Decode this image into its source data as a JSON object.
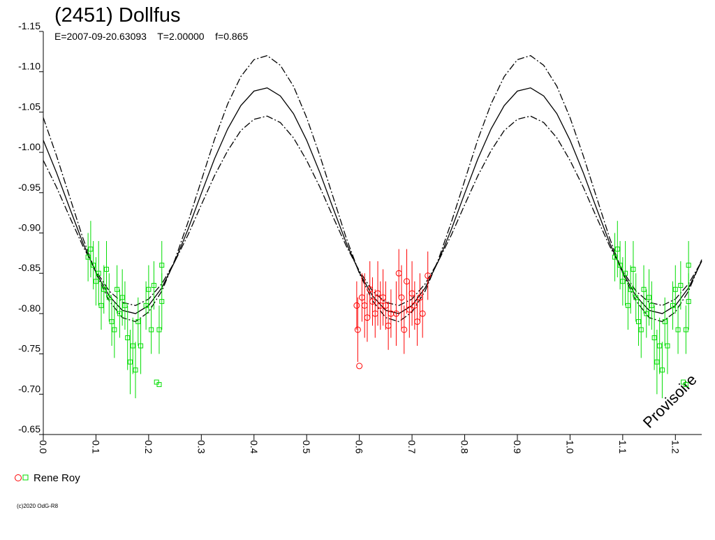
{
  "chart_data": {
    "type": "lightcurve",
    "title": "(2451) Dollfus",
    "subtitle": "E=2007-09-20.63093    T=2.00000    f=0.865",
    "watermark": "Provisoire",
    "copyright": "(c)2020 OdG-R8",
    "xlim": [
      0,
      1.25
    ],
    "xticks": [
      {
        "value": 0,
        "label": "0.0"
      },
      0.1,
      0.2,
      0.3,
      0.4,
      0.5,
      0.6,
      0.7,
      0.8,
      0.9,
      {
        "value": 1,
        "label": "1.0"
      },
      1.1,
      1.2
    ],
    "ylim": [
      -1.15,
      -0.65
    ],
    "invert_y": true,
    "yticks": [
      -1.15,
      {
        "value": -1.1,
        "label": "-1.10"
      },
      -1.05,
      {
        "value": -1.0,
        "label": "-1.00"
      },
      -0.95,
      {
        "value": -0.9,
        "label": "-0.90"
      },
      -0.85,
      {
        "value": -0.8,
        "label": "-0.80"
      },
      -0.75,
      {
        "value": -0.7,
        "label": "-0.70"
      },
      -0.65
    ],
    "curve_x": [
      0,
      0.025,
      0.05,
      0.075,
      0.1,
      0.125,
      0.15,
      0.175,
      0.2,
      0.225,
      0.25,
      0.275,
      0.3,
      0.325,
      0.35,
      0.375,
      0.4,
      0.425,
      0.45,
      0.475,
      0.5,
      0.525,
      0.55,
      0.575,
      0.6,
      0.625,
      0.65,
      0.675,
      0.7,
      0.725,
      0.75,
      0.775,
      0.8,
      0.825,
      0.85,
      0.875,
      0.9,
      0.925,
      0.95,
      0.975,
      1,
      1.025,
      1.05,
      1.075,
      1.1,
      1.125,
      1.15,
      1.175,
      1.2,
      1.225,
      1.25
    ],
    "curves": [
      {
        "color": "#000000",
        "dash": "solid",
        "values": [
          -1.015,
          -0.975,
          -0.931,
          -0.888,
          -0.851,
          -0.822,
          -0.804,
          -0.8,
          -0.81,
          -0.832,
          -0.865,
          -0.905,
          -0.949,
          -0.992,
          -1.029,
          -1.058,
          -1.076,
          -1.08,
          -1.07,
          -1.048,
          -1.015,
          -0.975,
          -0.931,
          -0.888,
          -0.851,
          -0.822,
          -0.804,
          -0.8,
          -0.81,
          -0.832,
          -0.865,
          -0.905,
          -0.949,
          -0.992,
          -1.029,
          -1.058,
          -1.076,
          -1.08,
          -1.07,
          -1.048,
          -1.015,
          -0.975,
          -0.931,
          -0.888,
          -0.851,
          -0.822,
          -0.804,
          -0.8,
          -0.81,
          -0.832,
          -0.865
        ]
      },
      {
        "color": "#000000",
        "dash": "dashed",
        "values": [
          -1.043,
          -0.996,
          -0.945,
          -0.894,
          -0.85,
          -0.816,
          -0.795,
          -0.79,
          -0.802,
          -0.828,
          -0.867,
          -0.914,
          -0.965,
          -1.016,
          -1.06,
          -1.094,
          -1.115,
          -1.12,
          -1.108,
          -1.082,
          -1.043,
          -0.996,
          -0.945,
          -0.894,
          -0.85,
          -0.816,
          -0.795,
          -0.79,
          -0.802,
          -0.828,
          -0.867,
          -0.914,
          -0.965,
          -1.016,
          -1.06,
          -1.094,
          -1.115,
          -1.12,
          -1.108,
          -1.082,
          -1.043,
          -0.996,
          -0.945,
          -0.894,
          -0.85,
          -0.816,
          -0.795,
          -0.79,
          -0.802,
          -0.828,
          -0.867
        ]
      },
      {
        "color": "#000000",
        "dash": "dashed",
        "values": [
          -0.99,
          -0.957,
          -0.92,
          -0.884,
          -0.853,
          -0.828,
          -0.814,
          -0.81,
          -0.818,
          -0.837,
          -0.865,
          -0.898,
          -0.935,
          -0.971,
          -1.002,
          -1.027,
          -1.041,
          -1.045,
          -1.037,
          -1.018,
          -0.99,
          -0.957,
          -0.92,
          -0.884,
          -0.853,
          -0.828,
          -0.814,
          -0.81,
          -0.818,
          -0.837,
          -0.865,
          -0.898,
          -0.935,
          -0.971,
          -1.002,
          -1.027,
          -1.041,
          -1.045,
          -1.037,
          -1.018,
          -0.99,
          -0.957,
          -0.92,
          -0.884,
          -0.853,
          -0.828,
          -0.814,
          -0.81,
          -0.818,
          -0.837,
          -0.865
        ]
      }
    ],
    "legend": {
      "label": "Rene Roy"
    },
    "series": [
      {
        "color": "#ff0000",
        "marker": "circle",
        "x": [
          0.595,
          0.597,
          0.6,
          0.605,
          0.61,
          0.615,
          0.62,
          0.625,
          0.63,
          0.635,
          0.64,
          0.645,
          0.65,
          0.655,
          0.66,
          0.67,
          0.675,
          0.68,
          0.685,
          0.69,
          0.695,
          0.7,
          0.705,
          0.71,
          0.715,
          0.72,
          0.73
        ],
        "values": [
          -0.81,
          -0.78,
          -0.735,
          -0.82,
          -0.81,
          -0.795,
          -0.83,
          -0.815,
          -0.8,
          -0.825,
          -0.81,
          -0.82,
          -0.81,
          -0.785,
          -0.8,
          -0.8,
          -0.85,
          -0.82,
          -0.78,
          -0.84,
          -0.805,
          -0.825,
          -0.81,
          -0.79,
          -0.82,
          -0.8,
          -0.847
        ],
        "errors": [
          0.03,
          0.04,
          0,
          0.03,
          0.04,
          0.03,
          0.035,
          0.03,
          0.03,
          0.04,
          0.03,
          0.035,
          0.03,
          0.03,
          0.03,
          0.04,
          0.03,
          0.04,
          0.03,
          0.04,
          0.035,
          0.04,
          0.03,
          0.03,
          0.03,
          0.03,
          0.03
        ]
      },
      {
        "color": "#00dd00",
        "marker": "square",
        "x": [
          0.085,
          0.09,
          0.095,
          0.1,
          0.105,
          0.11,
          0.115,
          0.12,
          0.125,
          0.13,
          0.135,
          0.14,
          0.145,
          0.15,
          0.155,
          0.16,
          0.165,
          0.17,
          0.175,
          0.18,
          0.185,
          0.195,
          0.2,
          0.205,
          0.21,
          0.215,
          0.22,
          0.22,
          0.225,
          0.225,
          1.085,
          1.09,
          1.095,
          1.1,
          1.105,
          1.11,
          1.115,
          1.12,
          1.125,
          1.13,
          1.135,
          1.14,
          1.145,
          1.15,
          1.155,
          1.16,
          1.165,
          1.17,
          1.175,
          1.18,
          1.185,
          1.195,
          1.2,
          1.205,
          1.21,
          1.215,
          1.22,
          1.22,
          1.225,
          1.225
        ],
        "values": [
          -0.87,
          -0.88,
          -0.86,
          -0.84,
          -0.85,
          -0.81,
          -0.83,
          -0.855,
          -0.82,
          -0.79,
          -0.78,
          -0.83,
          -0.8,
          -0.82,
          -0.81,
          -0.77,
          -0.74,
          -0.76,
          -0.73,
          -0.79,
          -0.76,
          -0.81,
          -0.83,
          -0.78,
          -0.835,
          -0.715,
          -0.712,
          -0.78,
          -0.815,
          -0.86,
          -0.87,
          -0.88,
          -0.86,
          -0.84,
          -0.85,
          -0.81,
          -0.83,
          -0.855,
          -0.82,
          -0.79,
          -0.78,
          -0.83,
          -0.8,
          -0.82,
          -0.81,
          -0.77,
          -0.74,
          -0.76,
          -0.73,
          -0.79,
          -0.76,
          -0.81,
          -0.83,
          -0.78,
          -0.835,
          -0.715,
          -0.712,
          -0.78,
          -0.815,
          -0.86
        ],
        "errors": [
          0.03,
          0.035,
          0.03,
          0.03,
          0.04,
          0.03,
          0.03,
          0.035,
          0.03,
          0.03,
          0.035,
          0.03,
          0.03,
          0.035,
          0.03,
          0.04,
          0.04,
          0.035,
          0.035,
          0.03,
          0.035,
          0.03,
          0.03,
          0.03,
          0.03,
          0,
          0,
          0.03,
          0.035,
          0.03,
          0.03,
          0.035,
          0.03,
          0.03,
          0.04,
          0.03,
          0.03,
          0.035,
          0.03,
          0.03,
          0.035,
          0.03,
          0.03,
          0.035,
          0.03,
          0.04,
          0.04,
          0.035,
          0.035,
          0.03,
          0.035,
          0.03,
          0.03,
          0.03,
          0.03,
          0,
          0,
          0.03,
          0.035,
          0.03
        ]
      }
    ]
  }
}
